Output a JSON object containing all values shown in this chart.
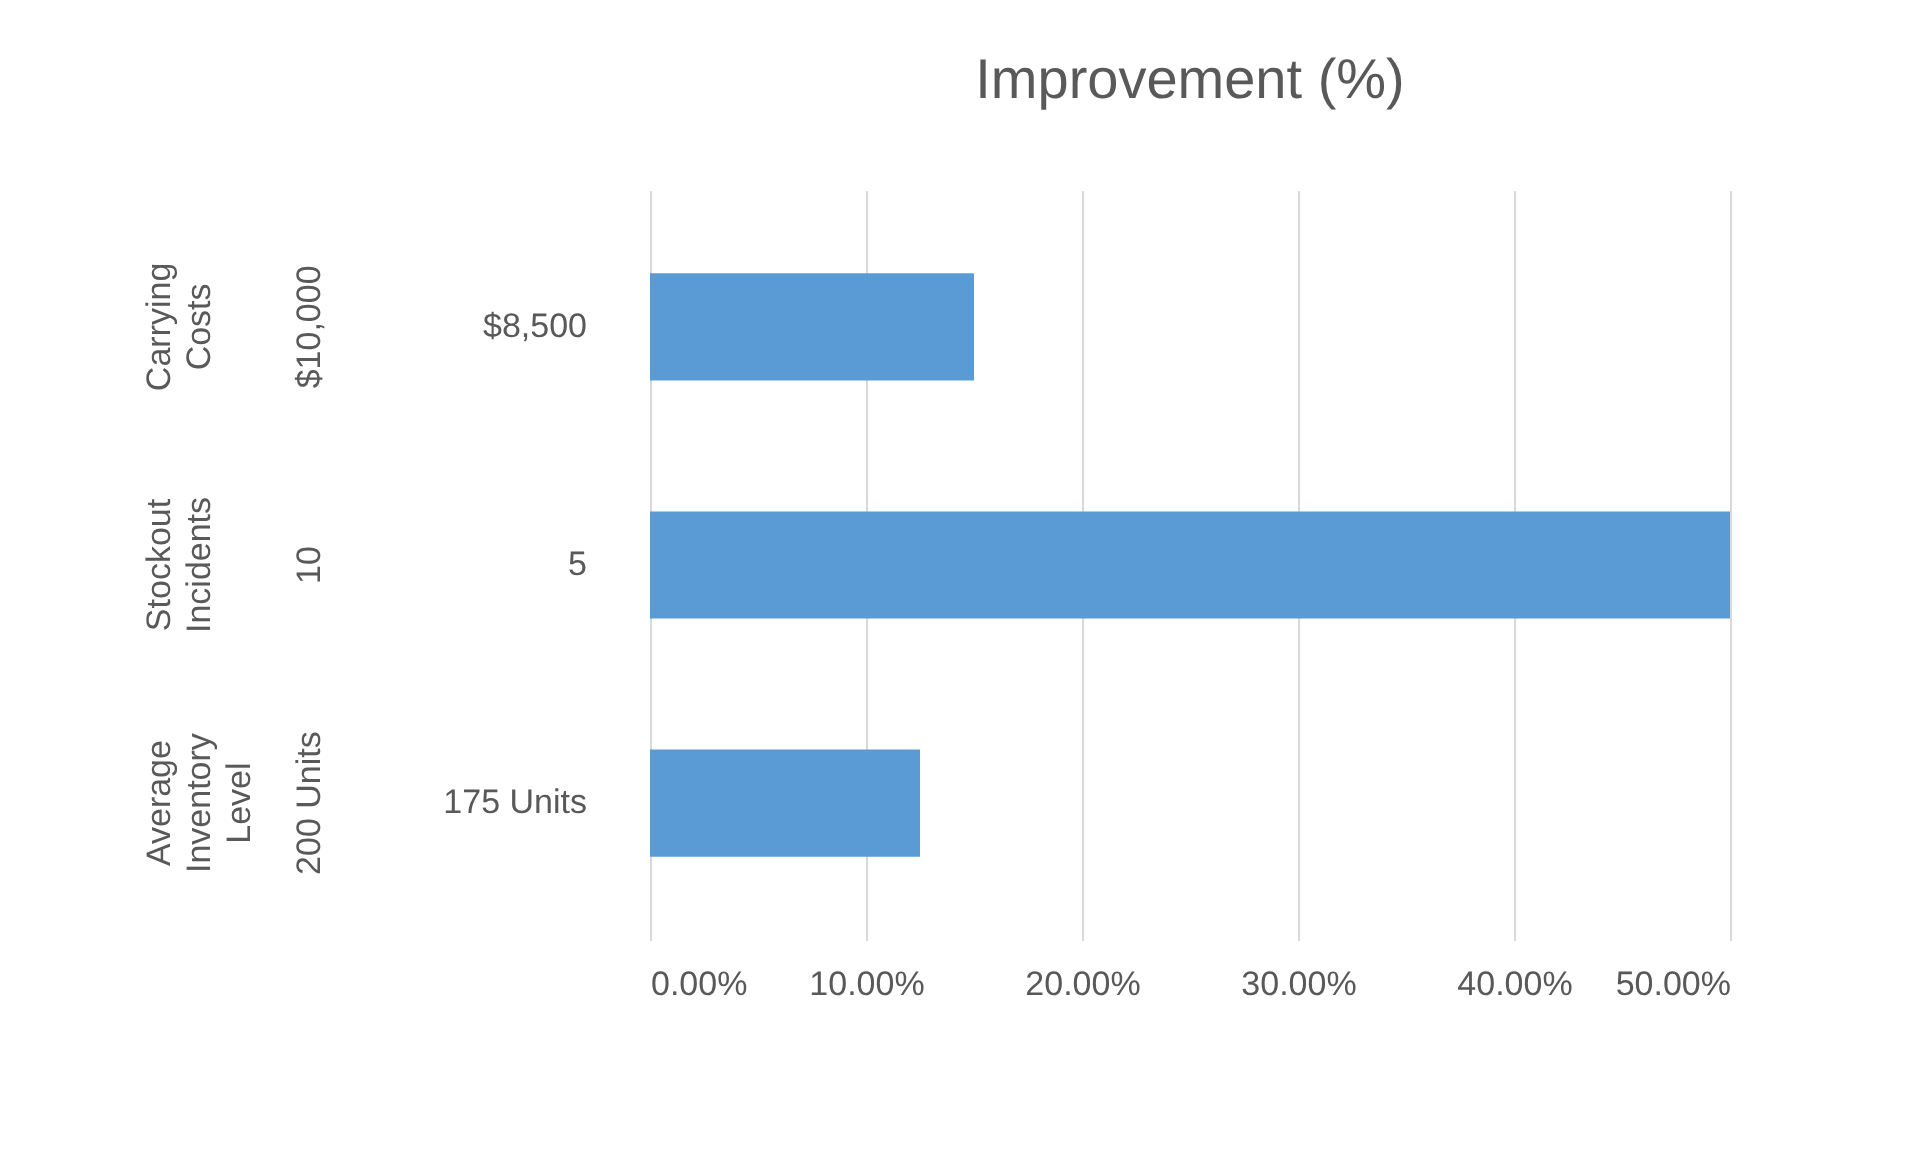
{
  "chart_data": {
    "type": "bar",
    "title": "Improvement (%)",
    "orientation": "horizontal",
    "categories": [
      "$8,500",
      "5",
      "175 Units"
    ],
    "values": [
      15,
      50,
      12.5
    ],
    "color": "#5b9bd5",
    "xlim": [
      0,
      50
    ],
    "xticks": [
      {
        "value": 0,
        "label": "0.00%"
      },
      {
        "value": 10,
        "label": "10.00%"
      },
      {
        "value": 20,
        "label": "20.00%"
      },
      {
        "value": 30,
        "label": "30.00%"
      },
      {
        "value": 40,
        "label": "40.00%"
      },
      {
        "value": 50,
        "label": "50.00%"
      }
    ],
    "grid": "x",
    "annotations": [
      "Carrying Costs",
      "Stockout Incidents",
      "Average Inventory Level",
      "$10,000",
      "10",
      "200 Units"
    ]
  }
}
